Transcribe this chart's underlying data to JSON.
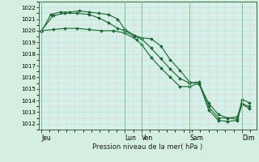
{
  "title": "Pression niveau de la mer( hPa )",
  "bg_color": "#d4eedf",
  "plot_bg_color": "#d4f0e8",
  "grid_minor_color": "#c0ddd0",
  "grid_major_color": "#88bb99",
  "line_color": "#1a6633",
  "ylim": [
    1011.5,
    1022.5
  ],
  "yticks": [
    1012,
    1013,
    1014,
    1015,
    1016,
    1017,
    1018,
    1019,
    1020,
    1021,
    1022
  ],
  "xtick_labels": [
    "Jeu",
    "Lun",
    "Ven",
    "Sam",
    "Dim"
  ],
  "xtick_positions": [
    0.0,
    3.5,
    4.2,
    6.2,
    8.4
  ],
  "vline_positions": [
    0.0,
    3.5,
    4.2,
    6.2,
    8.4
  ],
  "xlim": [
    -0.1,
    9.0
  ],
  "series": [
    {
      "x": [
        0.0,
        0.4,
        0.8,
        1.2,
        1.6,
        2.0,
        2.4,
        2.8,
        3.2,
        3.5,
        3.9,
        4.2,
        4.6,
        5.0,
        5.4,
        5.8,
        6.2,
        6.6,
        7.0,
        7.4,
        7.8,
        8.2,
        8.4,
        8.7
      ],
      "y": [
        1019.9,
        1021.4,
        1021.6,
        1021.6,
        1021.7,
        1021.6,
        1021.5,
        1021.4,
        1021.0,
        1020.1,
        1019.6,
        1019.4,
        1019.3,
        1018.7,
        1017.5,
        1016.6,
        1015.6,
        1015.4,
        1013.8,
        1012.8,
        1012.5,
        1012.6,
        1013.7,
        1013.5
      ]
    },
    {
      "x": [
        0.0,
        0.5,
        1.0,
        1.5,
        2.0,
        2.5,
        3.0,
        3.5,
        4.0,
        4.2,
        4.6,
        5.0,
        5.4,
        5.8,
        6.2,
        6.6,
        7.0,
        7.4,
        7.8,
        8.2,
        8.4,
        8.7
      ],
      "y": [
        1020.0,
        1020.1,
        1020.2,
        1020.2,
        1020.1,
        1020.0,
        1020.0,
        1019.8,
        1019.2,
        1018.8,
        1017.7,
        1016.8,
        1016.0,
        1015.2,
        1015.2,
        1015.5,
        1013.2,
        1012.3,
        1012.2,
        1012.3,
        1013.7,
        1013.3
      ]
    },
    {
      "x": [
        0.0,
        0.5,
        1.0,
        1.5,
        2.0,
        2.4,
        2.8,
        3.2,
        3.5,
        3.9,
        4.2,
        4.6,
        5.0,
        5.4,
        5.8,
        6.2,
        6.6,
        7.0,
        7.4,
        7.8,
        8.2,
        8.4,
        8.7
      ],
      "y": [
        1020.0,
        1021.3,
        1021.5,
        1021.5,
        1021.4,
        1021.1,
        1020.7,
        1020.2,
        1020.0,
        1019.5,
        1019.3,
        1018.5,
        1017.6,
        1016.7,
        1015.9,
        1015.5,
        1015.6,
        1013.5,
        1012.5,
        1012.5,
        1012.4,
        1014.1,
        1013.8
      ]
    }
  ]
}
